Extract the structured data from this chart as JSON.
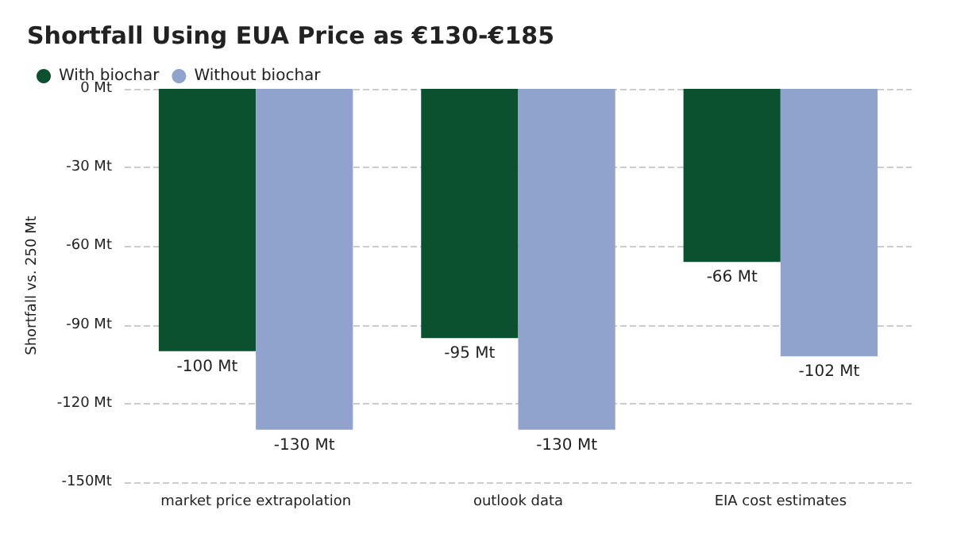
{
  "chart_data": {
    "type": "bar",
    "title": "Shortfall Using EUA Price as €130-€185",
    "ylabel": "Shortfall vs. 250 Mt",
    "categories": [
      "market price extrapolation",
      "outlook data",
      "EIA cost estimates"
    ],
    "series": [
      {
        "name": "With biochar",
        "color": "#0b5130",
        "values": [
          -100,
          -95,
          -66
        ],
        "value_labels": [
          "-100 Mt",
          "-95 Mt",
          "-66 Mt"
        ]
      },
      {
        "name": "Without biochar",
        "color": "#8fa3cc",
        "values": [
          -130,
          -130,
          -102
        ],
        "value_labels": [
          "-130 Mt",
          "-130 Mt",
          "-102 Mt"
        ]
      }
    ],
    "ylim": [
      -150,
      0
    ],
    "yticks": [
      {
        "value": 0,
        "label": "0 Mt"
      },
      {
        "value": -30,
        "label": "-30 Mt"
      },
      {
        "value": -60,
        "label": "-60 Mt"
      },
      {
        "value": -90,
        "label": "-90 Mt"
      },
      {
        "value": -120,
        "label": "-120 Mt"
      },
      {
        "value": -150,
        "label": "-150Mt"
      }
    ],
    "grid": "y",
    "legend": "top left"
  }
}
